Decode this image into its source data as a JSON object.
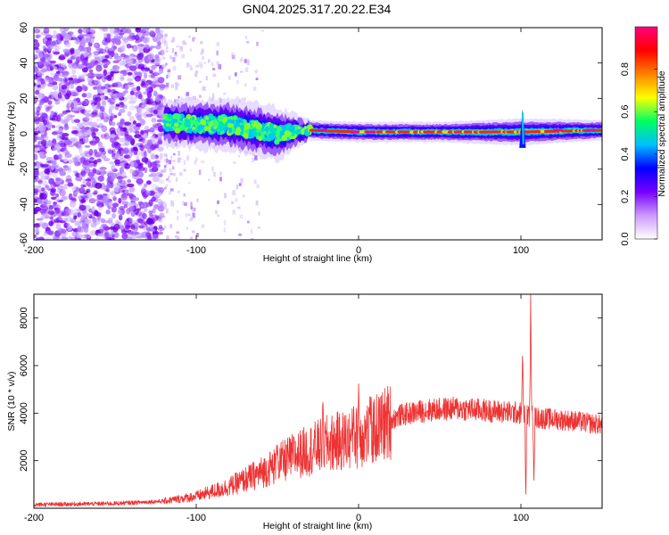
{
  "title": "GN04.2025.317.20.22.E34",
  "chart_data": [
    {
      "type": "heatmap",
      "name": "spectrogram",
      "xlabel": "Height of straight line (km)",
      "ylabel": "Frequency (Hz)",
      "xlim": [
        -200,
        150
      ],
      "ylim": [
        -60,
        60
      ],
      "xticks": [
        -200,
        -100,
        0,
        100
      ],
      "yticks": [
        -60,
        -40,
        -20,
        0,
        20,
        40,
        60
      ],
      "colorbar": {
        "label": "Normalized spectral amplitude",
        "range": [
          0,
          1
        ],
        "ticks": [
          0.0,
          0.2,
          0.4,
          0.6,
          0.8
        ],
        "colormap": [
          "#ffffff",
          "#cc99ff",
          "#7700ff",
          "#0000ff",
          "#00c0ff",
          "#00ff60",
          "#ffff00",
          "#ff8000",
          "#ff0000",
          "#ff0080"
        ]
      },
      "features": {
        "noise_region_x": [
          -200,
          -120
        ],
        "sparse_noise_x": [
          -120,
          -60
        ],
        "signal_band": [
          {
            "x": -120,
            "f_center": 6,
            "f_halfwidth": 7
          },
          {
            "x": -80,
            "f_center": 5,
            "f_halfwidth": 8
          },
          {
            "x": -50,
            "f_center": 0,
            "f_halfwidth": 8
          },
          {
            "x": -30,
            "f_center": 2,
            "f_halfwidth": 3
          },
          {
            "x": 0,
            "f_center": 1,
            "f_halfwidth": 3
          },
          {
            "x": 50,
            "f_center": 1,
            "f_halfwidth": 3
          },
          {
            "x": 100,
            "f_center": 1,
            "f_halfwidth": 4
          },
          {
            "x": 150,
            "f_center": 2,
            "f_halfwidth": 3
          }
        ]
      }
    },
    {
      "type": "line",
      "name": "snr",
      "xlabel": "Height of straight line (km)",
      "ylabel": "SNR (10 * v/v)",
      "xlim": [
        -200,
        150
      ],
      "ylim": [
        0,
        9000
      ],
      "xticks": [
        -200,
        -100,
        0,
        100
      ],
      "yticks": [
        2000,
        4000,
        6000,
        8000
      ],
      "color": "#ee3333",
      "envelope": [
        {
          "x": -200,
          "y": 150
        },
        {
          "x": -150,
          "y": 200
        },
        {
          "x": -120,
          "y": 300
        },
        {
          "x": -100,
          "y": 500
        },
        {
          "x": -80,
          "y": 900
        },
        {
          "x": -60,
          "y": 1500
        },
        {
          "x": -40,
          "y": 2200
        },
        {
          "x": -20,
          "y": 2700
        },
        {
          "x": 0,
          "y": 3000
        },
        {
          "x": 10,
          "y": 3300
        },
        {
          "x": 25,
          "y": 3900
        },
        {
          "x": 40,
          "y": 4100
        },
        {
          "x": 60,
          "y": 4200
        },
        {
          "x": 80,
          "y": 4100
        },
        {
          "x": 100,
          "y": 4000
        },
        {
          "x": 110,
          "y": 3800
        },
        {
          "x": 130,
          "y": 3700
        },
        {
          "x": 150,
          "y": 3500
        }
      ],
      "spikes": [
        {
          "x": -50,
          "y": 2800
        },
        {
          "x": -22,
          "y": 4500
        },
        {
          "x": -3,
          "y": 4400
        },
        {
          "x": 0,
          "y": 5300
        },
        {
          "x": 7,
          "y": 4700
        },
        {
          "x": 101,
          "y": 6600
        },
        {
          "x": 103,
          "y": 200
        },
        {
          "x": 106,
          "y": 9000
        },
        {
          "x": 108,
          "y": 1100
        }
      ]
    }
  ]
}
